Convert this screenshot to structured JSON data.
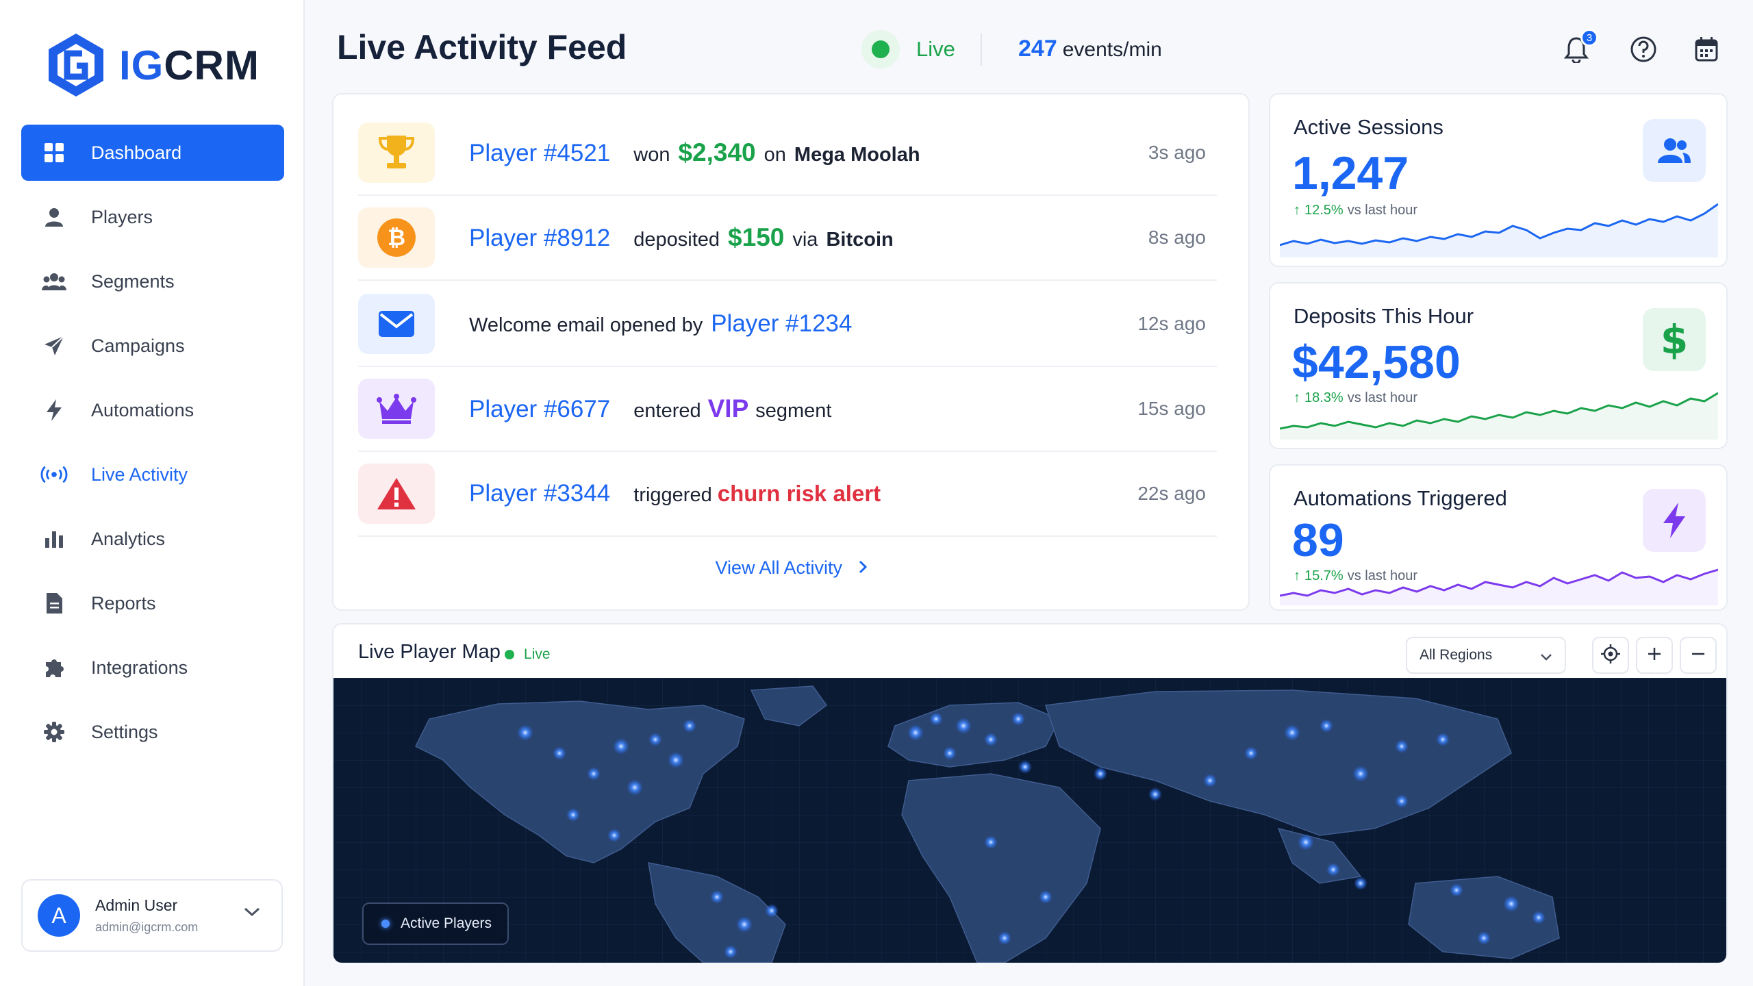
{
  "app": {
    "logo_prefix": "IG",
    "logo_suffix": "CRM"
  },
  "sidebar": {
    "items": [
      {
        "label": "Dashboard",
        "icon": "grid-icon",
        "active": true
      },
      {
        "label": "Players",
        "icon": "user-icon"
      },
      {
        "label": "Segments",
        "icon": "users-group-icon"
      },
      {
        "label": "Campaigns",
        "icon": "paper-plane-icon"
      },
      {
        "label": "Automations",
        "icon": "bolt-icon"
      },
      {
        "label": "Live Activity",
        "icon": "broadcast-icon",
        "highlight": true
      },
      {
        "label": "Analytics",
        "icon": "bar-chart-icon"
      },
      {
        "label": "Reports",
        "icon": "document-icon"
      },
      {
        "label": "Integrations",
        "icon": "puzzle-icon"
      },
      {
        "label": "Settings",
        "icon": "gear-icon"
      }
    ],
    "user": {
      "initial": "A",
      "name": "Admin User",
      "email": "admin@igcrm.com"
    }
  },
  "header": {
    "title": "Live Activity Feed",
    "live_label": "Live",
    "events_count": "247",
    "events_unit": "events/min",
    "notifications_badge": "3"
  },
  "feed": {
    "rows": [
      {
        "player": "Player #4521",
        "verb": "won",
        "amount": "$2,340",
        "prep": "on",
        "target": "Mega Moolah",
        "time": "3s ago",
        "icon": "trophy-icon"
      },
      {
        "player": "Player #8912",
        "verb": "deposited",
        "amount": "$150",
        "prep": "via",
        "target": "Bitcoin",
        "time": "8s ago",
        "icon": "bitcoin-icon"
      },
      {
        "text": "Welcome email opened by",
        "player": "Player #1234",
        "time": "12s ago",
        "icon": "envelope-icon"
      },
      {
        "player": "Player #6677",
        "verb": "entered",
        "highlight": "VIP",
        "suffix": "segment",
        "time": "15s ago",
        "icon": "crown-icon"
      },
      {
        "player": "Player #3344",
        "verb": "triggered",
        "alert": "churn risk alert",
        "time": "22s ago",
        "icon": "warning-icon"
      }
    ],
    "view_all": "View All Activity"
  },
  "stats": [
    {
      "title": "Active Sessions",
      "value": "1,247",
      "delta": "12.5%",
      "delta_label": "vs last hour",
      "icon": "users-icon",
      "color": "#1b66f2"
    },
    {
      "title": "Deposits This Hour",
      "value": "$42,580",
      "delta": "18.3%",
      "delta_label": "vs last hour",
      "icon": "dollar-icon",
      "color": "#1aa24a"
    },
    {
      "title": "Automations Triggered",
      "value": "89",
      "delta": "15.7%",
      "delta_label": "vs last hour",
      "icon": "bolt-icon",
      "color": "#7c3aed"
    }
  ],
  "map": {
    "title": "Live Player Map",
    "live_label": "Live",
    "region_select": "All Regions",
    "legend": "Active Players"
  },
  "colors": {
    "primary": "#1b66f2",
    "success": "#1aa24a",
    "danger": "#e03140",
    "purple": "#7c3aed"
  }
}
